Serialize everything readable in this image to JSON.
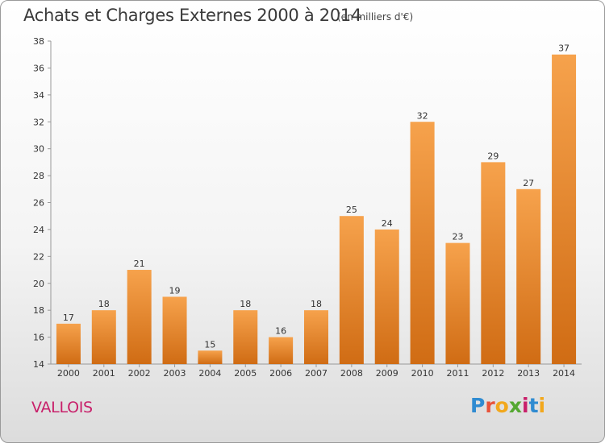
{
  "header": {
    "title": "Achats et Charges Externes 2000 à 2014",
    "subtitle": "(en milliers d'€)"
  },
  "footer": {
    "commune": "VALLOIS",
    "logo": "Proxiti",
    "logo_colors": [
      "#2f8bd1",
      "#e8533a",
      "#f2a81d",
      "#55a832",
      "#c8206a",
      "#2f8bd1",
      "#f2a81d"
    ]
  },
  "colors": {
    "bar_top": "#f6a24c",
    "bar_bottom": "#d06c14",
    "commune_text": "#c8206a"
  },
  "chart_data": {
    "type": "bar",
    "title": "Achats et Charges Externes 2000 à 2014",
    "subtitle": "(en milliers d'€)",
    "xlabel": "",
    "ylabel": "",
    "categories": [
      "2000",
      "2001",
      "2002",
      "2003",
      "2004",
      "2005",
      "2006",
      "2007",
      "2008",
      "2009",
      "2010",
      "2011",
      "2012",
      "2013",
      "2014"
    ],
    "values": [
      17,
      18,
      21,
      19,
      15,
      18,
      16,
      18,
      25,
      24,
      32,
      23,
      29,
      27,
      37
    ],
    "ylim": [
      14,
      38
    ],
    "yticks": [
      14,
      16,
      18,
      20,
      22,
      24,
      26,
      28,
      30,
      32,
      34,
      36,
      38
    ],
    "grid": false,
    "legend": "none"
  }
}
